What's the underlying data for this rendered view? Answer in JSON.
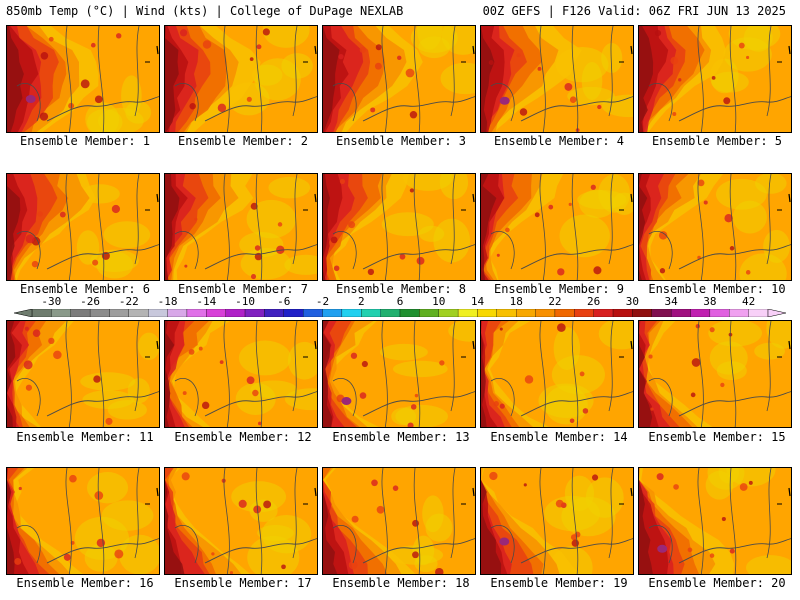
{
  "header": {
    "title_left": "850mb Temp (°C) | Wind (kts) | College of DuPage NEXLAB",
    "title_right": "00Z GEFS | F126 Valid: 06Z FRI JUN 13 2025"
  },
  "colorbar": {
    "ticks": [
      "-30",
      "-26",
      "-22",
      "-18",
      "-14",
      "-10",
      "-6",
      "-2",
      "2",
      "6",
      "10",
      "14",
      "18",
      "22",
      "26",
      "30",
      "34",
      "38",
      "42"
    ],
    "bins": [
      {
        "from": -32,
        "to": -30,
        "color": "#6e7c6e"
      },
      {
        "from": -30,
        "to": -28,
        "color": "#8a9a8a"
      },
      {
        "from": -28,
        "to": -26,
        "color": "#7c7c7c"
      },
      {
        "from": -26,
        "to": -24,
        "color": "#8c8c8c"
      },
      {
        "from": -24,
        "to": -22,
        "color": "#9e9e9e"
      },
      {
        "from": -22,
        "to": -20,
        "color": "#b4b4b4"
      },
      {
        "from": -20,
        "to": -18,
        "color": "#c8c8dc"
      },
      {
        "from": -18,
        "to": -16,
        "color": "#d8a8e8"
      },
      {
        "from": -16,
        "to": -14,
        "color": "#e070e8"
      },
      {
        "from": -14,
        "to": -12,
        "color": "#d840d8"
      },
      {
        "from": -12,
        "to": -10,
        "color": "#b020c8"
      },
      {
        "from": -10,
        "to": -8,
        "color": "#8020c0"
      },
      {
        "from": -8,
        "to": -6,
        "color": "#4020c0"
      },
      {
        "from": -6,
        "to": -4,
        "color": "#2020c8"
      },
      {
        "from": -4,
        "to": -2,
        "color": "#2060e0"
      },
      {
        "from": -2,
        "to": 0,
        "color": "#20a0f0"
      },
      {
        "from": 0,
        "to": 2,
        "color": "#20d0f0"
      },
      {
        "from": 2,
        "to": 4,
        "color": "#20d0b0"
      },
      {
        "from": 4,
        "to": 6,
        "color": "#20b070"
      },
      {
        "from": 6,
        "to": 8,
        "color": "#209030"
      },
      {
        "from": 8,
        "to": 10,
        "color": "#60b020"
      },
      {
        "from": 10,
        "to": 12,
        "color": "#a0d020"
      },
      {
        "from": 12,
        "to": 14,
        "color": "#f0f020"
      },
      {
        "from": 14,
        "to": 16,
        "color": "#f8d800"
      },
      {
        "from": 16,
        "to": 18,
        "color": "#f8c000"
      },
      {
        "from": 18,
        "to": 20,
        "color": "#f8a800"
      },
      {
        "from": 20,
        "to": 22,
        "color": "#f89000"
      },
      {
        "from": 22,
        "to": 24,
        "color": "#f06800"
      },
      {
        "from": 24,
        "to": 26,
        "color": "#e84010"
      },
      {
        "from": 26,
        "to": 28,
        "color": "#d82020"
      },
      {
        "from": 28,
        "to": 30,
        "color": "#b81010"
      },
      {
        "from": 30,
        "to": 32,
        "color": "#901010"
      },
      {
        "from": 32,
        "to": 34,
        "color": "#801050"
      },
      {
        "from": 34,
        "to": 36,
        "color": "#a01080"
      },
      {
        "from": 36,
        "to": 38,
        "color": "#c020b0"
      },
      {
        "from": 38,
        "to": 40,
        "color": "#e060e0"
      },
      {
        "from": 40,
        "to": 42,
        "color": "#f0a0f0"
      },
      {
        "from": 42,
        "to": 44,
        "color": "#f8d0f8"
      }
    ]
  },
  "palette": {
    "bg": "#ffa500",
    "warm": [
      "#f8c000",
      "#f89000",
      "#f06800",
      "#e84010",
      "#d82020",
      "#b81010",
      "#901010"
    ],
    "cool_patch": "#f0d000",
    "hot_core": "#9a2878",
    "contour": "#4a4a4a"
  },
  "members": [
    {
      "label": "Ensemble Member: 1",
      "core": true
    },
    {
      "label": "Ensemble Member: 2",
      "core": false
    },
    {
      "label": "Ensemble Member: 3",
      "core": false
    },
    {
      "label": "Ensemble Member: 4",
      "core": true
    },
    {
      "label": "Ensemble Member: 5",
      "core": false
    },
    {
      "label": "Ensemble Member: 6",
      "core": false
    },
    {
      "label": "Ensemble Member: 7",
      "core": false
    },
    {
      "label": "Ensemble Member: 8",
      "core": false
    },
    {
      "label": "Ensemble Member: 9",
      "core": false
    },
    {
      "label": "Ensemble Member: 10",
      "core": false
    },
    {
      "label": "Ensemble Member: 11",
      "core": false
    },
    {
      "label": "Ensemble Member: 12",
      "core": false
    },
    {
      "label": "Ensemble Member: 13",
      "core": true
    },
    {
      "label": "Ensemble Member: 14",
      "core": false
    },
    {
      "label": "Ensemble Member: 15",
      "core": false
    },
    {
      "label": "Ensemble Member: 16",
      "core": false
    },
    {
      "label": "Ensemble Member: 17",
      "core": false
    },
    {
      "label": "Ensemble Member: 18",
      "core": false
    },
    {
      "label": "Ensemble Member: 19",
      "core": true
    },
    {
      "label": "Ensemble Member: 20",
      "core": true
    }
  ]
}
